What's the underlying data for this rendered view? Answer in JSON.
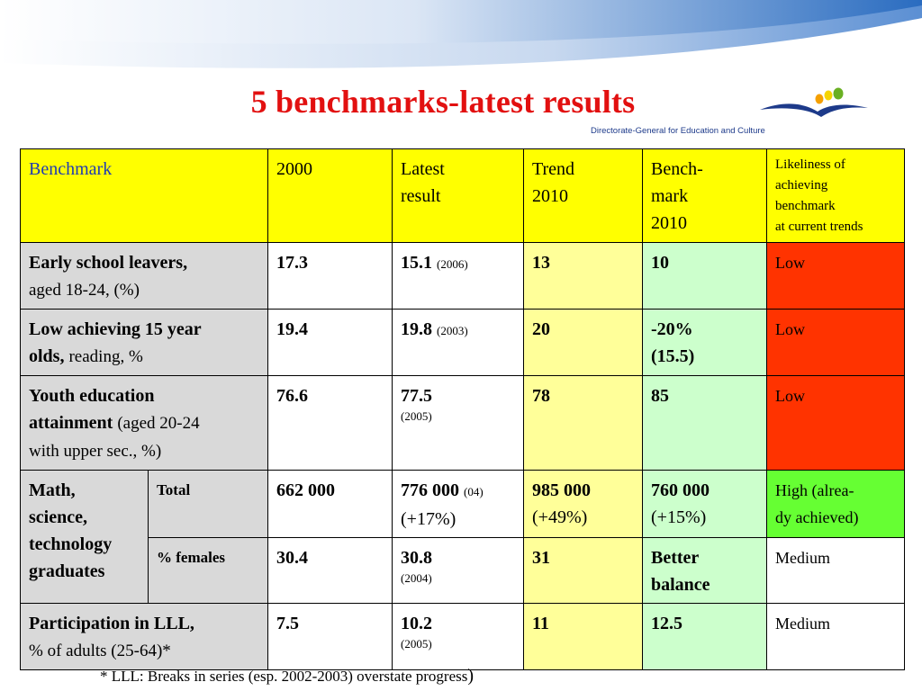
{
  "title": "5 benchmarks-latest results",
  "logo": {
    "caption": "Directorate-General for Education and Culture",
    "dot_colors": [
      "#f5a000",
      "#f5d400",
      "#6ab023"
    ],
    "bird_color": "#1d3a8a"
  },
  "header": {
    "benchmark": "Benchmark",
    "y2000": "2000",
    "latest": [
      "Latest",
      "result"
    ],
    "trend": [
      "Trend",
      "2010"
    ],
    "bench2010": [
      "Bench-",
      "mark",
      "2010"
    ],
    "likeliness": [
      "Likeliness of",
      "achieving",
      "benchmark",
      "at current trends"
    ]
  },
  "rows": {
    "esl": {
      "label_bold": "Early school leavers,",
      "label_rest": "aged 18-24, (%)",
      "y2000": "17.3",
      "latest": "15.1",
      "latest_year": "(2006)",
      "trend": "13",
      "bench": "10",
      "likeliness": "Low"
    },
    "lowach": {
      "label_bold_1": "Low achieving 15 year",
      "label_bold_2": "olds,",
      "label_rest": "reading, %",
      "y2000": "19.4",
      "latest": "19.8",
      "latest_year": "(2003)",
      "trend": "20",
      "bench_1": "-20%",
      "bench_2": "(15.5)",
      "likeliness": "Low"
    },
    "youth": {
      "label_bold_1": "Youth education",
      "label_bold_2": "attainment",
      "label_rest_1": "(aged 20-24",
      "label_rest_2": "with upper sec., %)",
      "y2000": "76.6",
      "latest": "77.5",
      "latest_year": "(2005)",
      "trend": "78",
      "bench": "85",
      "likeliness": "Low"
    },
    "mst": {
      "label": [
        "Math,",
        "science,",
        "technology",
        "graduates"
      ],
      "total": {
        "sublabel": "Total",
        "y2000": "662 000",
        "latest": "776 000",
        "latest_year": "(04)",
        "latest_change": "(+17%)",
        "trend": "985 000",
        "trend_change": "(+49%)",
        "bench": "760 000",
        "bench_change": "(+15%)",
        "likeliness": [
          "High (alrea-",
          "dy achieved)"
        ]
      },
      "females": {
        "sublabel": "% females",
        "y2000": "30.4",
        "latest": "30.8",
        "latest_year": "(2004)",
        "trend": "31",
        "bench_1": "Better",
        "bench_2": "balance",
        "likeliness": "Medium"
      }
    },
    "lll": {
      "label_bold": "Participation in LLL,",
      "label_rest": "% of adults (25-64)*",
      "y2000": "7.5",
      "latest": "10.2",
      "latest_year": "(2005)",
      "trend": "11",
      "bench": "12.5",
      "likeliness": "Medium"
    }
  },
  "footnote": "* LLL: Breaks in series (esp. 2002-2003) overstate progress",
  "footnote_paren": ")"
}
